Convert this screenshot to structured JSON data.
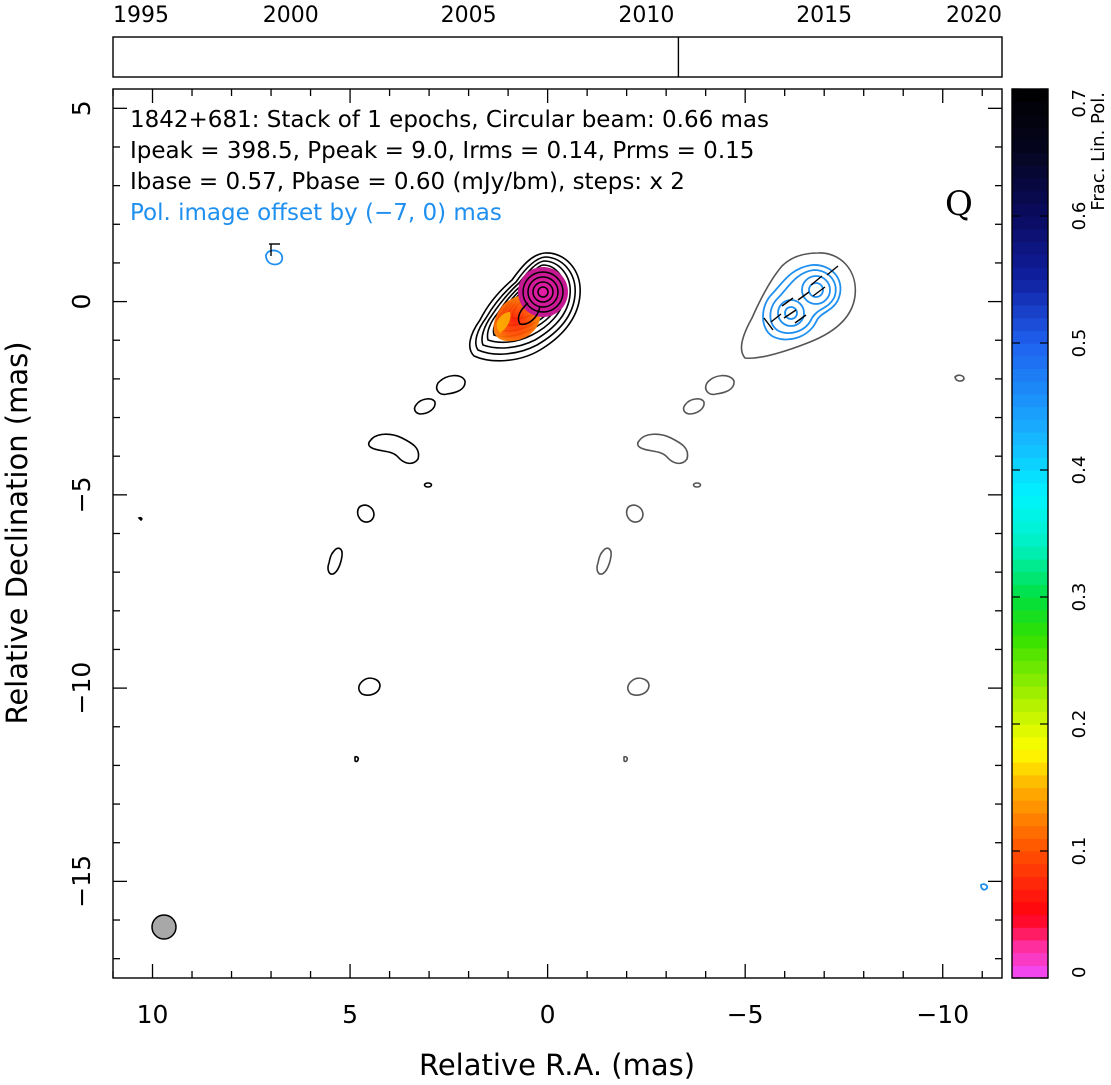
{
  "chart_data": {
    "type": "contour",
    "xlabel": "Relative R.A. (mas)",
    "ylabel": "Relative Declination (mas)",
    "xlim": [
      11,
      -11.5
    ],
    "ylim": [
      -17.5,
      5.5
    ],
    "x_ticks": [
      10,
      5,
      0,
      -5,
      -10
    ],
    "x_tick_labels": [
      "10",
      "5",
      "0",
      "−5",
      "−10"
    ],
    "y_ticks": [
      5,
      0,
      -5,
      -10,
      -15
    ],
    "y_tick_labels": [
      "5",
      "0",
      "−5",
      "−10",
      "−15"
    ],
    "annotations": {
      "line1": "1842+681: Stack of 1 epochs, Circular beam: 0.66 mas",
      "line2": "Ipeak = 398.5, Ppeak = 9.0, Irms = 0.14, Prms = 0.15",
      "line3": "Ibase = 0.57, Pbase = 0.60 (mJy/bm), steps: x 2",
      "line4": "Pol. image offset by (−7, 0) mas",
      "band": "Q"
    },
    "beam": {
      "x": 10,
      "y": -16.5,
      "diameter_mas": 0.66
    },
    "epoch_timeline": {
      "years": [
        1995,
        2000,
        2005,
        2010,
        2015,
        2020
      ],
      "range": [
        1995,
        2020
      ],
      "epochs": [
        2010.9
      ]
    },
    "colorbar": {
      "label": "Frac. Lin. Pol.",
      "range": [
        0,
        0.7
      ],
      "ticks": [
        0,
        0.1,
        0.2,
        0.3,
        0.4,
        0.5,
        0.6,
        0.7
      ],
      "tick_labels": [
        "0",
        "0.1",
        "0.2",
        "0.3",
        "0.4",
        "0.5",
        "0.6",
        "0.7"
      ]
    },
    "core": {
      "x": 0,
      "y": 0
    },
    "jet_features": [
      {
        "x": 2.2,
        "y": -2.3
      },
      {
        "x": 3.0,
        "y": -2.9
      },
      {
        "x": 3.9,
        "y": -4.2
      },
      {
        "x": 3.0,
        "y": -5.0
      },
      {
        "x": 4.6,
        "y": -5.8
      },
      {
        "x": 5.3,
        "y": -7.0
      },
      {
        "x": 4.5,
        "y": -10.3
      },
      {
        "x": 4.9,
        "y": -12.1
      }
    ]
  },
  "colors": {
    "total_intensity_contours": "#000000",
    "pol_offset_total_intensity": "#555555",
    "pol_contours": "#1f8ff0",
    "annotation_blue": "#1f8ff0",
    "beam_fill": "#a8a8a8"
  }
}
